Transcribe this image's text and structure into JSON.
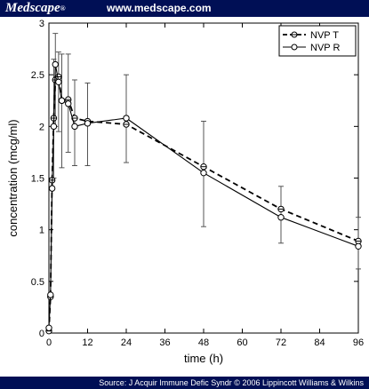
{
  "header": {
    "brand": "Medscape",
    "brand_mark": "®",
    "site_url": "www.medscape.com"
  },
  "footer": {
    "source": "Source: J Acquir Immune Defic Syndr © 2006 Lippincott Williams & Wilkins"
  },
  "chart_data": {
    "type": "line",
    "title": "",
    "xlabel": "time (h)",
    "ylabel": "concentration (mcg/ml)",
    "xlim": [
      0,
      96
    ],
    "ylim": [
      0,
      3
    ],
    "xticks": [
      0,
      12,
      24,
      36,
      48,
      60,
      72,
      84,
      96
    ],
    "yticks": [
      0,
      0.5,
      1,
      1.5,
      2,
      2.5,
      3
    ],
    "grid": false,
    "legend_position": "top-right",
    "series": [
      {
        "name": "NVP T",
        "line_style": "dashed",
        "marker": "circle-bar",
        "points": [
          {
            "x": 0,
            "y": 0.02
          },
          {
            "x": 0.5,
            "y": 0.35
          },
          {
            "x": 1,
            "y": 1.48
          },
          {
            "x": 1.5,
            "y": 2.08
          },
          {
            "x": 2,
            "y": 2.45
          },
          {
            "x": 3,
            "y": 2.48
          },
          {
            "x": 4,
            "y": 2.25
          },
          {
            "x": 6,
            "y": 2.26
          },
          {
            "x": 8,
            "y": 2.08
          },
          {
            "x": 12,
            "y": 2.05
          },
          {
            "x": 24,
            "y": 2.02
          },
          {
            "x": 48,
            "y": 1.61
          },
          {
            "x": 72,
            "y": 1.2
          },
          {
            "x": 96,
            "y": 0.89
          }
        ]
      },
      {
        "name": "NVP R",
        "line_style": "solid",
        "marker": "circle",
        "points": [
          {
            "x": 0,
            "y": 0.05
          },
          {
            "x": 0.5,
            "y": 0.37
          },
          {
            "x": 1,
            "y": 1.4
          },
          {
            "x": 1.5,
            "y": 2.0
          },
          {
            "x": 2,
            "y": 2.6
          },
          {
            "x": 3,
            "y": 2.43
          },
          {
            "x": 4,
            "y": 2.25
          },
          {
            "x": 6,
            "y": 2.22
          },
          {
            "x": 8,
            "y": 2.0
          },
          {
            "x": 12,
            "y": 2.03
          },
          {
            "x": 24,
            "y": 2.08
          },
          {
            "x": 48,
            "y": 1.55
          },
          {
            "x": 72,
            "y": 1.12
          },
          {
            "x": 96,
            "y": 0.84
          }
        ]
      }
    ],
    "error_bars": [
      {
        "x": 1.5,
        "low": 1.5,
        "high": 2.65
      },
      {
        "x": 2,
        "low": 2.0,
        "high": 2.9
      },
      {
        "x": 3,
        "low": 1.95,
        "high": 2.72
      },
      {
        "x": 4,
        "low": 1.6,
        "high": 2.7
      },
      {
        "x": 6,
        "low": 1.75,
        "high": 2.7
      },
      {
        "x": 8,
        "low": 1.62,
        "high": 2.45
      },
      {
        "x": 12,
        "low": 1.62,
        "high": 2.42
      },
      {
        "x": 24,
        "low": 1.65,
        "high": 2.5
      },
      {
        "x": 48,
        "low": 1.03,
        "high": 2.05
      },
      {
        "x": 72,
        "low": 0.87,
        "high": 1.42
      },
      {
        "x": 96,
        "low": 0.62,
        "high": 1.12
      }
    ]
  }
}
